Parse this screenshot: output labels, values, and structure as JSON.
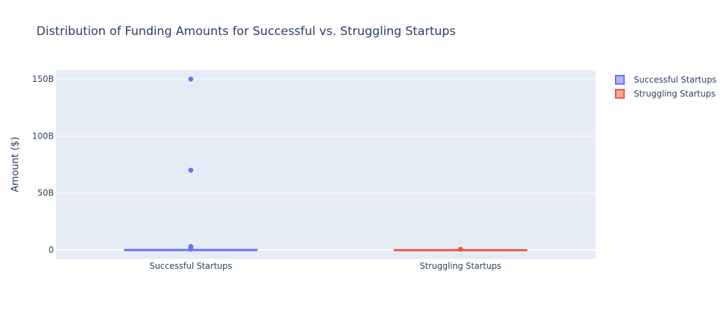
{
  "chart_data": {
    "type": "box",
    "title": "Distribution of Funding Amounts for Successful vs. Struggling Startups",
    "xlabel": "",
    "ylabel": "Amount ($)",
    "ylim": [
      -8000000000,
      158000000000
    ],
    "y_ticks": [
      {
        "value": 0,
        "label": "0"
      },
      {
        "value": 50000000000,
        "label": "50B"
      },
      {
        "value": 100000000000,
        "label": "100B"
      },
      {
        "value": 150000000000,
        "label": "150B"
      }
    ],
    "categories": [
      "Successful Startups",
      "Struggling Startups"
    ],
    "grid": true,
    "legend_position": "top-right",
    "series": [
      {
        "name": "Successful Startups",
        "color": "#636efa",
        "fill": "rgba(99,110,250,0.5)",
        "box": {
          "q1": 0,
          "median": 50000000,
          "q3": 200000000,
          "lowerfence": 0,
          "upperfence": 500000000
        },
        "outliers": [
          150000000000,
          70000000000,
          3000000000,
          1800000000,
          600000000
        ]
      },
      {
        "name": "Struggling Startups",
        "color": "#ef553b",
        "fill": "rgba(239,85,59,0.5)",
        "box": {
          "q1": 0,
          "median": 20000000,
          "q3": 80000000,
          "lowerfence": 0,
          "upperfence": 150000000
        },
        "outliers": [
          600000000,
          400000000
        ]
      }
    ]
  }
}
